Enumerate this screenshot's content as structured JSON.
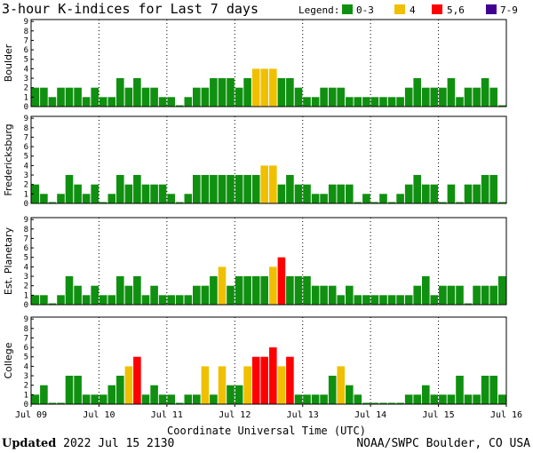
{
  "chart_data": {
    "type": "bar",
    "title": "3-hour K-indices for Last 7 days",
    "legend": {
      "title": "Legend:",
      "entries": [
        {
          "label": "0-3",
          "color": "#109010"
        },
        {
          "label": "4",
          "color": "#f0c000"
        },
        {
          "label": "5,6",
          "color": "#ff0000"
        },
        {
          "label": "7-9",
          "color": "#400090"
        }
      ]
    },
    "xlabel": "Coordinate Universal Time (UTC)",
    "x_ticks": [
      "Jul 09",
      "Jul 10",
      "Jul 11",
      "Jul 12",
      "Jul 13",
      "Jul 14",
      "Jul 15",
      "Jul 16"
    ],
    "y_ticks": [
      "0",
      "1",
      "2",
      "3",
      "4",
      "5",
      "6",
      "7",
      "8",
      "9"
    ],
    "ylim": [
      0,
      9
    ],
    "interval_hours": 3,
    "grid": "dotted vertical lines at day boundaries",
    "panels": [
      {
        "name": "Boulder",
        "values": [
          2,
          2,
          1,
          2,
          2,
          2,
          1,
          2,
          1,
          1,
          3,
          2,
          3,
          2,
          2,
          1,
          1,
          0,
          1,
          2,
          2,
          3,
          3,
          3,
          2,
          3,
          4,
          4,
          4,
          3,
          3,
          2,
          1,
          1,
          2,
          2,
          2,
          1,
          1,
          1,
          1,
          1,
          1,
          1,
          2,
          3,
          2,
          2,
          2,
          3,
          1,
          2,
          2,
          3,
          2,
          0
        ]
      },
      {
        "name": "Fredericksburg",
        "values": [
          2,
          1,
          0,
          1,
          3,
          2,
          1,
          2,
          0,
          1,
          3,
          2,
          3,
          2,
          2,
          2,
          1,
          0,
          1,
          3,
          3,
          3,
          3,
          3,
          3,
          3,
          3,
          4,
          4,
          2,
          3,
          2,
          2,
          1,
          1,
          2,
          2,
          2,
          0,
          1,
          0,
          1,
          0,
          1,
          2,
          3,
          2,
          2,
          0,
          2,
          0,
          2,
          2,
          3,
          3,
          0
        ]
      },
      {
        "name": "Est. Planetary",
        "values": [
          1,
          1,
          0,
          1,
          3,
          2,
          1,
          2,
          1,
          1,
          3,
          2,
          3,
          1,
          2,
          1,
          1,
          1,
          1,
          2,
          2,
          3,
          4,
          2,
          3,
          3,
          3,
          3,
          4,
          5,
          3,
          3,
          3,
          2,
          2,
          2,
          1,
          2,
          1,
          1,
          1,
          1,
          1,
          1,
          1,
          2,
          3,
          1,
          2,
          2,
          2,
          0,
          2,
          2,
          2,
          3
        ]
      },
      {
        "name": "College",
        "values": [
          1,
          2,
          0,
          0,
          3,
          3,
          1,
          1,
          1,
          2,
          3,
          4,
          5,
          1,
          2,
          1,
          1,
          0,
          1,
          1,
          4,
          1,
          4,
          2,
          2,
          4,
          5,
          5,
          6,
          4,
          5,
          1,
          1,
          1,
          1,
          3,
          4,
          2,
          1,
          0,
          0,
          0,
          0,
          0,
          1,
          1,
          2,
          1,
          1,
          1,
          3,
          1,
          1,
          3,
          3,
          1
        ]
      }
    ]
  },
  "footer": {
    "updated_label": "Updated",
    "updated_value": "2022 Jul 15 2130",
    "credit": "NOAA/SWPC Boulder, CO USA"
  }
}
